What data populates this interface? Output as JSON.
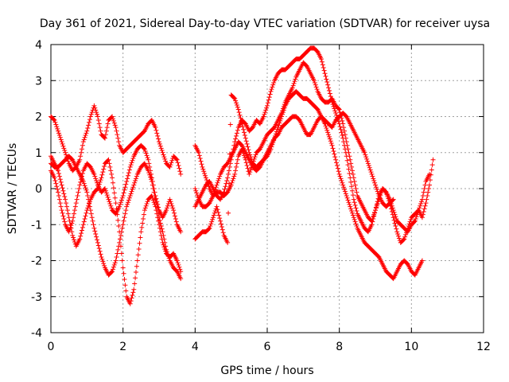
{
  "chart_data": {
    "type": "scatter",
    "title": "Day 361 of 2021, Sidereal Day-to-day VTEC variation (SDTVAR) for receiver uysa",
    "xlabel": "GPS time / hours",
    "ylabel": "SDTVAR / TECUs",
    "xlim": [
      0,
      12
    ],
    "ylim": [
      -4,
      4
    ],
    "xticks": [
      "0",
      "2",
      "4",
      "6",
      "8",
      "10",
      "12"
    ],
    "yticks": [
      "-4",
      "-3",
      "-2",
      "-1",
      "0",
      "1",
      "2",
      "3",
      "4"
    ],
    "grid": true,
    "marker": "+",
    "color": "#ff0000",
    "series": [
      {
        "name": "s1",
        "x": [
          0.0,
          0.1,
          0.2,
          0.3,
          0.4,
          0.5,
          0.6,
          0.7,
          0.8,
          0.9,
          1.0,
          1.1,
          1.2,
          1.3,
          1.4,
          1.5,
          1.6,
          1.7,
          1.8,
          1.9,
          2.0,
          2.1,
          2.2,
          2.3,
          2.4,
          2.5,
          2.6,
          2.7,
          2.8,
          2.9,
          3.0,
          3.1,
          3.2,
          3.3,
          3.4,
          3.5,
          3.6
        ],
        "y": [
          2.0,
          1.9,
          1.6,
          1.3,
          1.0,
          0.7,
          0.5,
          0.6,
          0.8,
          1.3,
          1.6,
          2.0,
          2.3,
          2.0,
          1.5,
          1.4,
          1.9,
          2.0,
          1.7,
          1.2,
          1.0,
          1.1,
          1.2,
          1.3,
          1.4,
          1.5,
          1.6,
          1.8,
          1.9,
          1.7,
          1.3,
          1.0,
          0.7,
          0.6,
          0.9,
          0.8,
          0.4
        ]
      },
      {
        "name": "s2",
        "x": [
          0.0,
          0.1,
          0.2,
          0.3,
          0.4,
          0.5,
          0.6,
          0.7,
          0.8,
          0.9,
          1.0,
          1.1,
          1.2,
          1.3,
          1.4,
          1.5,
          1.6,
          1.7,
          1.8,
          1.9,
          2.0,
          2.1,
          2.2,
          2.3,
          2.4,
          2.5,
          2.6,
          2.7,
          2.8,
          2.9,
          3.0,
          3.1,
          3.2,
          3.3,
          3.4,
          3.5,
          3.6
        ],
        "y": [
          0.7,
          0.6,
          0.6,
          0.7,
          0.8,
          0.9,
          0.8,
          0.6,
          0.4,
          0.2,
          -0.1,
          -0.6,
          -1.1,
          -1.5,
          -1.9,
          -2.2,
          -2.4,
          -2.3,
          -2.0,
          -1.5,
          -1.0,
          -0.5,
          -0.2,
          0.1,
          0.4,
          0.6,
          0.7,
          0.5,
          0.2,
          -0.3,
          -0.8,
          -1.2,
          -1.7,
          -2.0,
          -2.2,
          -2.3,
          -2.5
        ]
      },
      {
        "name": "s3",
        "x": [
          0.0,
          0.1,
          0.2,
          0.3,
          0.4,
          0.5,
          0.6,
          0.7,
          0.8,
          0.9,
          1.0,
          1.1,
          1.2,
          1.3,
          1.4,
          1.5,
          1.6,
          1.7,
          1.8,
          1.9,
          2.0,
          2.1,
          2.2,
          2.3,
          2.4,
          2.5,
          2.6,
          2.7,
          2.8,
          2.9,
          3.0,
          3.1,
          3.2,
          3.3,
          3.4,
          3.5,
          3.6
        ],
        "y": [
          0.9,
          0.7,
          0.5,
          0.1,
          -0.3,
          -0.8,
          -1.3,
          -1.6,
          -1.4,
          -1.0,
          -0.6,
          -0.3,
          -0.1,
          0.0,
          0.3,
          0.7,
          0.8,
          0.3,
          -0.4,
          -1.2,
          -2.2,
          -3.0,
          -3.2,
          -2.8,
          -2.0,
          -1.2,
          -0.6,
          -0.3,
          -0.2,
          -0.5,
          -1.0,
          -1.5,
          -1.8,
          -1.9,
          -1.8,
          -2.0,
          -2.3
        ]
      },
      {
        "name": "s4",
        "x": [
          0.0,
          0.1,
          0.2,
          0.3,
          0.4,
          0.5,
          0.6,
          0.7,
          0.8,
          0.9,
          1.0,
          1.1,
          1.2,
          1.3,
          1.4,
          1.5,
          1.6,
          1.7,
          1.8,
          1.9,
          2.0,
          2.1,
          2.2,
          2.3,
          2.4,
          2.5,
          2.6,
          2.7,
          2.8,
          2.9,
          3.0,
          3.1,
          3.2,
          3.3,
          3.4,
          3.5,
          3.6
        ],
        "y": [
          0.5,
          0.3,
          -0.1,
          -0.6,
          -1.0,
          -1.2,
          -0.9,
          -0.4,
          0.1,
          0.5,
          0.7,
          0.6,
          0.4,
          0.1,
          -0.1,
          0.0,
          -0.3,
          -0.6,
          -0.7,
          -0.5,
          -0.2,
          0.2,
          0.6,
          0.9,
          1.1,
          1.2,
          1.1,
          0.8,
          0.3,
          -0.2,
          -0.6,
          -0.8,
          -0.6,
          -0.3,
          -0.6,
          -1.0,
          -1.2
        ]
      },
      {
        "name": "s5",
        "x": [
          4.0,
          4.1,
          4.2,
          4.3,
          4.4,
          4.5,
          4.6,
          4.7,
          4.8,
          4.9,
          5.0,
          5.1,
          5.2,
          5.3,
          5.4,
          5.5,
          5.6,
          5.7,
          5.8,
          5.9,
          6.0,
          6.1,
          6.2,
          6.3,
          6.4,
          6.5,
          6.6,
          6.7,
          6.8,
          6.9,
          7.0,
          7.1,
          7.2,
          7.3,
          7.4,
          7.5,
          7.6,
          7.7,
          7.8,
          7.9,
          8.0,
          8.1,
          8.2,
          8.3,
          8.4,
          8.5,
          8.6,
          8.7,
          8.8,
          8.9,
          9.0,
          9.1,
          9.2,
          9.3,
          9.4,
          9.5,
          9.6,
          9.7,
          9.8,
          9.9,
          10.0,
          10.1,
          10.2,
          10.3,
          10.4,
          10.5,
          10.6
        ],
        "y": [
          -0.5,
          -0.3,
          -0.1,
          0.1,
          0.2,
          0.0,
          -0.2,
          -0.3,
          -0.1,
          0.3,
          0.8,
          1.3,
          1.7,
          1.9,
          1.8,
          1.6,
          1.7,
          1.9,
          1.8,
          2.0,
          2.3,
          2.7,
          3.0,
          3.2,
          3.3,
          3.3,
          3.4,
          3.5,
          3.6,
          3.6,
          3.7,
          3.8,
          3.9,
          3.9,
          3.8,
          3.6,
          3.2,
          2.8,
          2.4,
          2.1,
          1.8,
          1.4,
          0.9,
          0.3,
          -0.3,
          -0.7,
          -0.9,
          -1.1,
          -1.2,
          -1.0,
          -0.6,
          -0.2,
          0.0,
          -0.1,
          -0.4,
          -0.8,
          -1.2,
          -1.5,
          -1.4,
          -1.1,
          -0.8,
          -0.7,
          -0.6,
          -0.8,
          -0.4,
          0.1,
          0.8
        ]
      },
      {
        "name": "s6",
        "x": [
          4.0,
          4.1,
          4.2,
          4.3,
          4.4,
          4.5,
          4.6,
          4.7,
          4.8,
          4.9,
          5.0,
          5.1,
          5.2,
          5.3,
          5.4,
          5.5,
          5.6,
          5.7,
          5.8,
          5.9,
          6.0,
          6.1,
          6.2,
          6.3,
          6.4,
          6.5,
          6.6,
          6.7,
          6.8,
          6.9,
          7.0,
          7.1,
          7.2,
          7.3,
          7.4,
          7.5,
          7.6,
          7.7,
          7.8,
          7.9,
          8.0,
          8.1,
          8.2,
          8.3,
          8.4,
          8.5,
          8.6,
          8.7,
          8.8,
          8.9,
          9.0,
          9.1,
          9.2,
          9.3,
          9.4,
          9.5,
          9.6,
          9.7,
          9.8,
          9.9,
          10.0,
          10.1,
          10.2,
          10.3
        ],
        "y": [
          -1.4,
          -1.3,
          -1.2,
          -1.2,
          -1.1,
          -0.8,
          -0.5,
          -0.9,
          -1.3,
          -1.5,
          2.6,
          2.5,
          2.2,
          1.8,
          1.4,
          1.0,
          0.7,
          0.6,
          0.7,
          0.8,
          0.9,
          1.1,
          1.4,
          1.7,
          2.0,
          2.3,
          2.5,
          2.6,
          2.7,
          2.6,
          2.5,
          2.5,
          2.4,
          2.3,
          2.2,
          2.0,
          1.8,
          1.5,
          1.2,
          0.8,
          0.4,
          0.1,
          -0.2,
          -0.5,
          -0.8,
          -1.1,
          -1.3,
          -1.5,
          -1.6,
          -1.7,
          -1.8,
          -1.9,
          -2.1,
          -2.3,
          -2.4,
          -2.5,
          -2.3,
          -2.1,
          -2.0,
          -2.1,
          -2.3,
          -2.4,
          -2.2,
          -2.0
        ]
      },
      {
        "name": "s7",
        "x": [
          4.0,
          4.1,
          4.2,
          4.3,
          4.4,
          4.5,
          4.6,
          4.7,
          4.8,
          4.9,
          5.0,
          5.1,
          5.2,
          5.3,
          5.4,
          5.5,
          5.6,
          5.7,
          5.8,
          5.9,
          6.0,
          6.1,
          6.2,
          6.3,
          6.4,
          6.5,
          6.6,
          6.7,
          6.8,
          6.9,
          7.0,
          7.1,
          7.2,
          7.3,
          7.4,
          7.5,
          7.6,
          7.7,
          7.8,
          7.9,
          8.0,
          8.1,
          8.2,
          8.3,
          8.4,
          8.5,
          8.6,
          8.7,
          8.8,
          8.9,
          9.0,
          9.1,
          9.2,
          9.3,
          9.4,
          9.5,
          9.6,
          9.7,
          9.8,
          9.9,
          10.0,
          10.1,
          10.2,
          10.3,
          10.4,
          10.5
        ],
        "y": [
          1.2,
          1.0,
          0.6,
          0.3,
          0.0,
          -0.2,
          -0.1,
          -0.1,
          -0.2,
          -0.1,
          0.1,
          0.4,
          0.9,
          1.1,
          0.8,
          0.4,
          0.7,
          1.0,
          1.1,
          1.3,
          1.5,
          1.6,
          1.7,
          1.9,
          2.1,
          2.4,
          2.6,
          2.8,
          3.1,
          3.3,
          3.5,
          3.4,
          3.2,
          3.0,
          2.7,
          2.5,
          2.4,
          2.4,
          2.5,
          2.3,
          2.2,
          1.8,
          1.3,
          0.8,
          0.3,
          -0.2,
          -0.4,
          -0.6,
          -0.8,
          -0.9,
          -0.6,
          -0.3,
          0.0,
          -0.1,
          -0.3,
          -0.6,
          -0.9,
          -1.0,
          -1.1,
          -1.2,
          -1.0,
          -0.9,
          -0.6,
          -0.3,
          0.2,
          0.4
        ]
      },
      {
        "name": "s8",
        "x": [
          4.0,
          4.1,
          4.2,
          4.3,
          4.4,
          4.5,
          4.6,
          4.7,
          4.8,
          4.9,
          5.0,
          5.1,
          5.2,
          5.3,
          5.4,
          5.5,
          5.6,
          5.7,
          5.8,
          5.9,
          6.0,
          6.1,
          6.2,
          6.3,
          6.4,
          6.5,
          6.6,
          6.7,
          6.8,
          6.9,
          7.0,
          7.1,
          7.2,
          7.3,
          7.4,
          7.5,
          7.6,
          7.7,
          7.8,
          7.9,
          8.0,
          8.1,
          8.2,
          8.3,
          8.4,
          8.5,
          8.6,
          8.7,
          8.8,
          8.9,
          9.0,
          9.1,
          9.2,
          9.3,
          9.4,
          9.5
        ],
        "y": [
          0.0,
          -0.3,
          -0.5,
          -0.5,
          -0.4,
          -0.2,
          0.1,
          0.4,
          0.6,
          0.7,
          0.9,
          1.1,
          1.3,
          1.2,
          1.0,
          0.8,
          0.6,
          0.5,
          0.6,
          0.8,
          1.0,
          1.2,
          1.4,
          1.5,
          1.7,
          1.8,
          1.9,
          2.0,
          2.0,
          1.9,
          1.7,
          1.5,
          1.5,
          1.7,
          1.9,
          2.0,
          1.9,
          1.8,
          1.7,
          1.9,
          2.0,
          2.1,
          2.0,
          1.8,
          1.6,
          1.4,
          1.2,
          1.0,
          0.7,
          0.4,
          0.1,
          -0.2,
          -0.4,
          -0.5,
          -0.4,
          -0.3
        ]
      }
    ]
  }
}
